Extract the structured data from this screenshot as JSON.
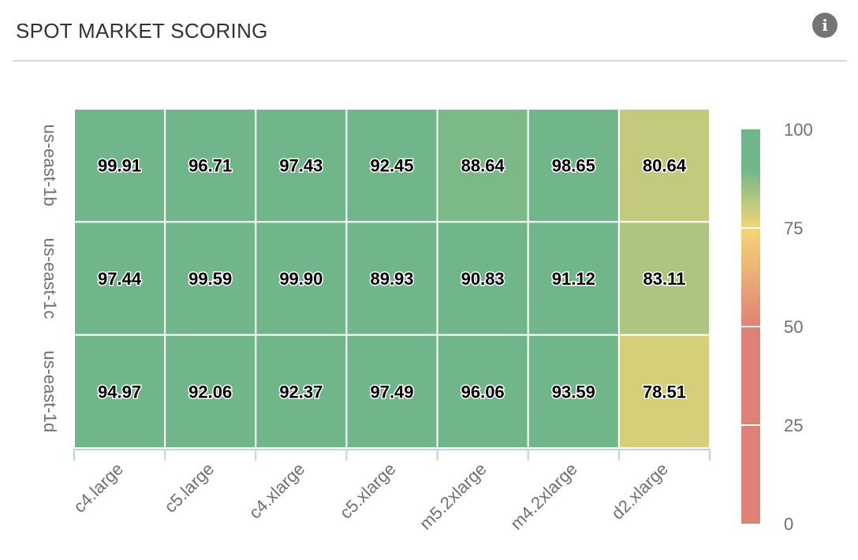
{
  "header": {
    "title": "SPOT MARKET SCORING",
    "info_icon": "info-icon"
  },
  "colors": {
    "green": "#70b68a",
    "lightgreen": "#a8c884",
    "yellow": "#f5d675",
    "red": "#de8278",
    "axis": "#bfd2e8",
    "label": "#707070"
  },
  "chart_data": {
    "type": "heatmap",
    "x_categories": [
      "c4.large",
      "c5.large",
      "c4.xlarge",
      "c5.xlarge",
      "m5.2xlarge",
      "m4.2xlarge",
      "d2.xlarge"
    ],
    "y_categories": [
      "us-east-1b",
      "us-east-1c",
      "us-east-1d"
    ],
    "values": [
      [
        99.91,
        96.71,
        97.43,
        92.45,
        88.64,
        98.65,
        80.64
      ],
      [
        97.44,
        99.59,
        99.9,
        89.93,
        90.83,
        91.12,
        83.11
      ],
      [
        94.97,
        92.06,
        92.37,
        97.49,
        96.06,
        93.59,
        78.51
      ]
    ],
    "color_scale": {
      "min": 0,
      "max": 100,
      "ticks": [
        "0",
        "25",
        "50",
        "75",
        "100"
      ]
    }
  }
}
